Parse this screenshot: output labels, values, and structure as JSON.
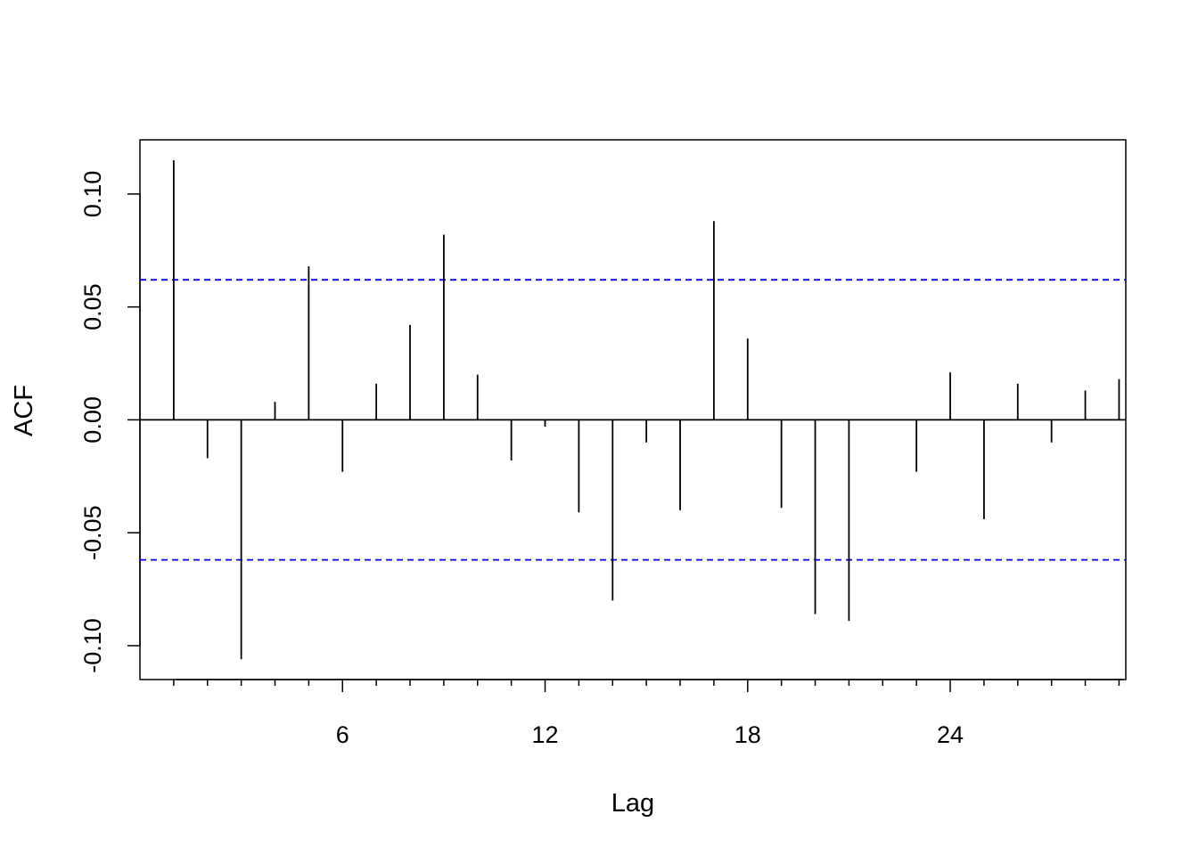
{
  "chart_data": {
    "type": "bar",
    "title": "",
    "xlabel": "Lag",
    "ylabel": "ACF",
    "x_ticks": [
      6,
      12,
      18,
      24
    ],
    "x_tick_labels": [
      "6",
      "12",
      "18",
      "24"
    ],
    "y_ticks": [
      -0.1,
      -0.05,
      0.0,
      0.05,
      0.1
    ],
    "y_tick_labels": [
      "-0.10",
      "-0.05",
      "0.00",
      "0.05",
      "0.10"
    ],
    "xlim": [
      0.0,
      29.2
    ],
    "ylim": [
      -0.115,
      0.124
    ],
    "minor_ticks": [
      1,
      2,
      3,
      4,
      5,
      6,
      7,
      8,
      9,
      10,
      11,
      12,
      13,
      14,
      15,
      16,
      17,
      18,
      19,
      20,
      21,
      22,
      23,
      24,
      25,
      26,
      27,
      28,
      29
    ],
    "lags": [
      1,
      2,
      3,
      4,
      5,
      6,
      7,
      8,
      9,
      10,
      11,
      12,
      13,
      14,
      15,
      16,
      17,
      18,
      19,
      20,
      21,
      22,
      23,
      24,
      25,
      26,
      27,
      28,
      29
    ],
    "values": [
      0.115,
      -0.017,
      -0.106,
      0.008,
      0.068,
      -0.023,
      0.016,
      0.042,
      0.082,
      0.02,
      -0.018,
      -0.003,
      -0.041,
      -0.08,
      -0.01,
      -0.04,
      0.088,
      0.036,
      -0.039,
      -0.086,
      -0.089,
      0.0,
      -0.023,
      0.021,
      -0.044,
      0.016,
      -0.01,
      0.013,
      0.018
    ],
    "confidence_bound": 0.062,
    "bar_color": "#000000",
    "bound_color": "#0000ff",
    "grid": false,
    "legend": "none"
  }
}
